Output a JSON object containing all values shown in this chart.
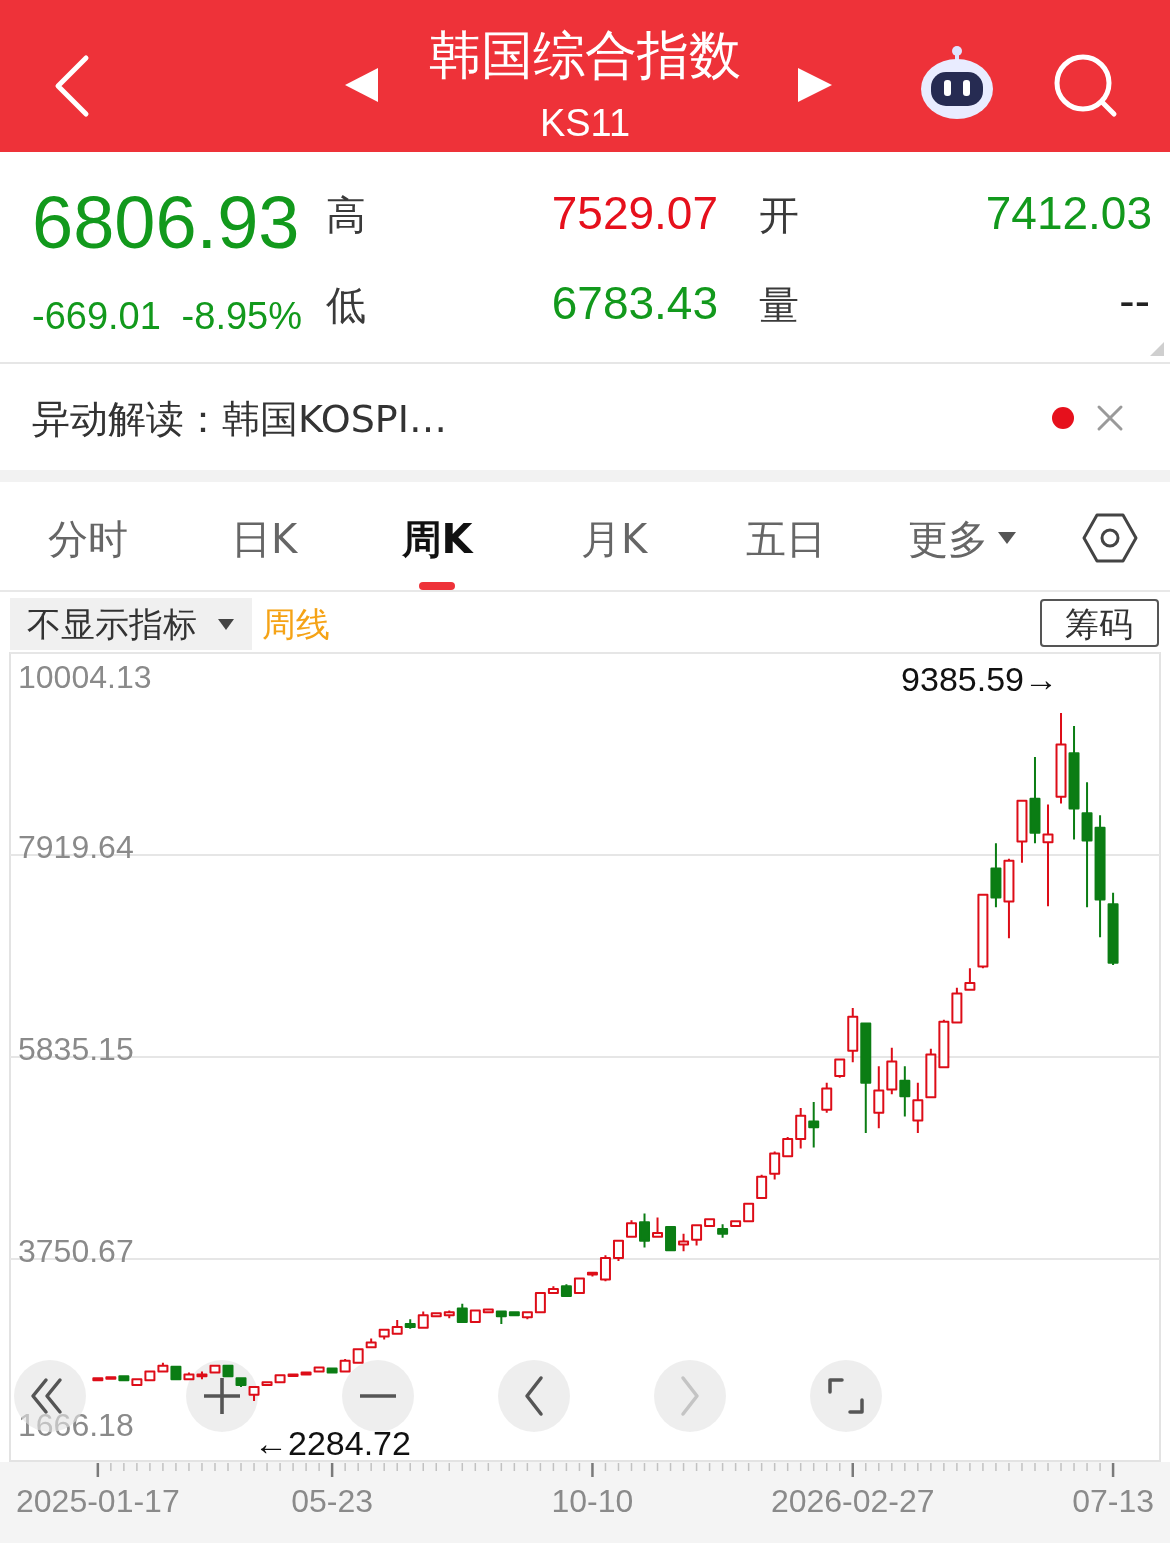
{
  "chart_data": {
    "type": "candlestick",
    "title": "韩国综合指数",
    "subtitle": "KS11",
    "categories": [
      "2025-01-17",
      null,
      null,
      null,
      null,
      null,
      null,
      null,
      null,
      null,
      null,
      null,
      null,
      null,
      null,
      null,
      null,
      null,
      "05-23",
      null,
      null,
      null,
      null,
      null,
      null,
      null,
      null,
      null,
      null,
      null,
      null,
      null,
      null,
      null,
      null,
      null,
      null,
      null,
      "10-10",
      null,
      null,
      null,
      null,
      null,
      null,
      null,
      null,
      null,
      null,
      null,
      null,
      null,
      null,
      null,
      null,
      null,
      null,
      null,
      "2026-02-27",
      null,
      null,
      null,
      null,
      null,
      null,
      null,
      null,
      null,
      null,
      null,
      null,
      null,
      null,
      null,
      null,
      null,
      null,
      null,
      "07-13"
    ],
    "ohlc": [
      [
        2500,
        2530,
        2490,
        2520
      ],
      [
        2520,
        2540,
        2510,
        2530
      ],
      [
        2540,
        2550,
        2490,
        2500
      ],
      [
        2450,
        2520,
        2440,
        2510
      ],
      [
        2500,
        2590,
        2500,
        2590
      ],
      [
        2590,
        2680,
        2580,
        2650
      ],
      [
        2640,
        2650,
        2510,
        2510
      ],
      [
        2510,
        2580,
        2510,
        2560
      ],
      [
        2540,
        2590,
        2510,
        2560
      ],
      [
        2580,
        2660,
        2570,
        2650
      ],
      [
        2650,
        2650,
        2540,
        2540
      ],
      [
        2520,
        2520,
        2430,
        2450
      ],
      [
        2350,
        2430,
        2284.72,
        2430
      ],
      [
        2450,
        2490,
        2450,
        2480
      ],
      [
        2480,
        2550,
        2470,
        2550
      ],
      [
        2550,
        2570,
        2550,
        2560
      ],
      [
        2560,
        2590,
        2560,
        2580
      ],
      [
        2590,
        2640,
        2580,
        2630
      ],
      [
        2620,
        2630,
        2580,
        2580
      ],
      [
        2590,
        2720,
        2580,
        2700
      ],
      [
        2680,
        2830,
        2680,
        2820
      ],
      [
        2840,
        2930,
        2830,
        2890
      ],
      [
        2950,
        3030,
        2920,
        3020
      ],
      [
        2980,
        3120,
        2980,
        3050
      ],
      [
        3080,
        3130,
        3030,
        3050
      ],
      [
        3040,
        3210,
        3030,
        3170
      ],
      [
        3160,
        3200,
        3160,
        3190
      ],
      [
        3170,
        3220,
        3140,
        3200
      ],
      [
        3240,
        3290,
        3100,
        3100
      ],
      [
        3100,
        3220,
        3100,
        3220
      ],
      [
        3200,
        3240,
        3190,
        3230
      ],
      [
        3210,
        3210,
        3080,
        3160
      ],
      [
        3200,
        3210,
        3160,
        3170
      ],
      [
        3150,
        3200,
        3130,
        3200
      ],
      [
        3200,
        3400,
        3190,
        3400
      ],
      [
        3400,
        3470,
        3390,
        3440
      ],
      [
        3470,
        3490,
        3370,
        3370
      ],
      [
        3400,
        3560,
        3400,
        3550
      ],
      [
        3590,
        3620,
        3570,
        3610
      ],
      [
        3540,
        3790,
        3520,
        3760
      ],
      [
        3760,
        3950,
        3730,
        3940
      ],
      [
        3980,
        4150,
        3970,
        4120
      ],
      [
        4130,
        4220,
        3870,
        3940
      ],
      [
        3980,
        4180,
        3980,
        4020
      ],
      [
        4080,
        4090,
        3830,
        3840
      ],
      [
        3900,
        4010,
        3830,
        3930
      ],
      [
        3950,
        4110,
        3890,
        4100
      ],
      [
        4090,
        4170,
        4080,
        4160
      ],
      [
        4060,
        4110,
        3970,
        4010
      ],
      [
        4090,
        4140,
        4090,
        4140
      ],
      [
        4140,
        4320,
        4140,
        4320
      ],
      [
        4380,
        4620,
        4370,
        4600
      ],
      [
        4630,
        4860,
        4570,
        4840
      ],
      [
        4810,
        5010,
        4810,
        4990
      ],
      [
        4990,
        5310,
        4890,
        5230
      ],
      [
        5170,
        5370,
        4900,
        5110
      ],
      [
        5290,
        5570,
        5260,
        5510
      ],
      [
        5640,
        5820,
        5620,
        5810
      ],
      [
        5900,
        6340,
        5780,
        6250
      ],
      [
        6180,
        6180,
        5050,
        5570
      ],
      [
        5260,
        5740,
        5100,
        5490
      ],
      [
        5500,
        5930,
        5450,
        5790
      ],
      [
        5590,
        5740,
        5220,
        5430
      ],
      [
        5180,
        5570,
        5050,
        5390
      ],
      [
        5420,
        5920,
        5410,
        5860
      ],
      [
        5730,
        6220,
        5730,
        6200
      ],
      [
        6190,
        6550,
        6180,
        6490
      ],
      [
        6530,
        6750,
        6520,
        6600
      ],
      [
        6770,
        7520,
        6750,
        7510
      ],
      [
        7780,
        8040,
        7380,
        7480
      ],
      [
        7440,
        7880,
        7060,
        7860
      ],
      [
        8060,
        8490,
        7840,
        8480
      ],
      [
        8500,
        8930,
        8040,
        8150
      ],
      [
        8050,
        8440,
        7390,
        8130
      ],
      [
        8520,
        9385.59,
        8450,
        9060
      ],
      [
        8970,
        9250,
        8080,
        8400
      ],
      [
        8350,
        8670,
        7380,
        8070
      ],
      [
        8200,
        8330,
        7070,
        7460
      ],
      [
        7412.03,
        7529.07,
        6783.43,
        6806.93
      ]
    ],
    "colors": [
      "#dd0d18",
      "#dd0d18",
      "#0b7d14",
      "#dd0d18",
      "#dd0d18",
      "#dd0d18",
      "#0b7d14",
      "#dd0d18",
      "#dd0d18",
      "#dd0d18",
      "#0b7d14",
      "#0b7d14",
      "#dd0d18",
      "#dd0d18",
      "#dd0d18",
      "#dd0d18",
      "#dd0d18",
      "#dd0d18",
      "#0b7d14",
      "#dd0d18",
      "#dd0d18",
      "#dd0d18",
      "#dd0d18",
      "#dd0d18",
      "#0b7d14",
      "#dd0d18",
      "#dd0d18",
      "#dd0d18",
      "#0b7d14",
      "#dd0d18",
      "#dd0d18",
      "#0b7d14",
      "#0b7d14",
      "#dd0d18",
      "#dd0d18",
      "#dd0d18",
      "#0b7d14",
      "#dd0d18",
      "#dd0d18",
      "#dd0d18",
      "#dd0d18",
      "#dd0d18",
      "#0b7d14",
      "#dd0d18",
      "#0b7d14",
      "#dd0d18",
      "#dd0d18",
      "#dd0d18",
      "#0b7d14",
      "#dd0d18",
      "#dd0d18",
      "#dd0d18",
      "#dd0d18",
      "#dd0d18",
      "#dd0d18",
      "#0b7d14",
      "#dd0d18",
      "#dd0d18",
      "#dd0d18",
      "#0b7d14",
      "#dd0d18",
      "#dd0d18",
      "#0b7d14",
      "#dd0d18",
      "#dd0d18",
      "#dd0d18",
      "#dd0d18",
      "#dd0d18",
      "#dd0d18",
      "#0b7d14",
      "#dd0d18",
      "#dd0d18",
      "#0b7d14",
      "#dd0d18",
      "#dd0d18",
      "#0b7d14",
      "#0b7d14",
      "#0b7d14",
      "#0b7d14"
    ],
    "ylim": [
      1666.18,
      10004.13
    ],
    "yticks": [
      1666.18,
      3750.67,
      5835.15,
      7919.64,
      10004.13
    ],
    "grid": "y",
    "annotations": [
      "6806.93",
      "高",
      "7529.07",
      "开",
      "7412.03",
      "-669.01",
      "-8.95%",
      "低",
      "6783.43",
      "量",
      "--",
      "异动解读：韩国KOSPI…",
      "分时",
      "日K",
      "周K",
      "月K",
      "五日",
      "更多",
      "不显示指标",
      "周线",
      "筹码",
      "9385.59→",
      "←2284.72"
    ]
  }
}
